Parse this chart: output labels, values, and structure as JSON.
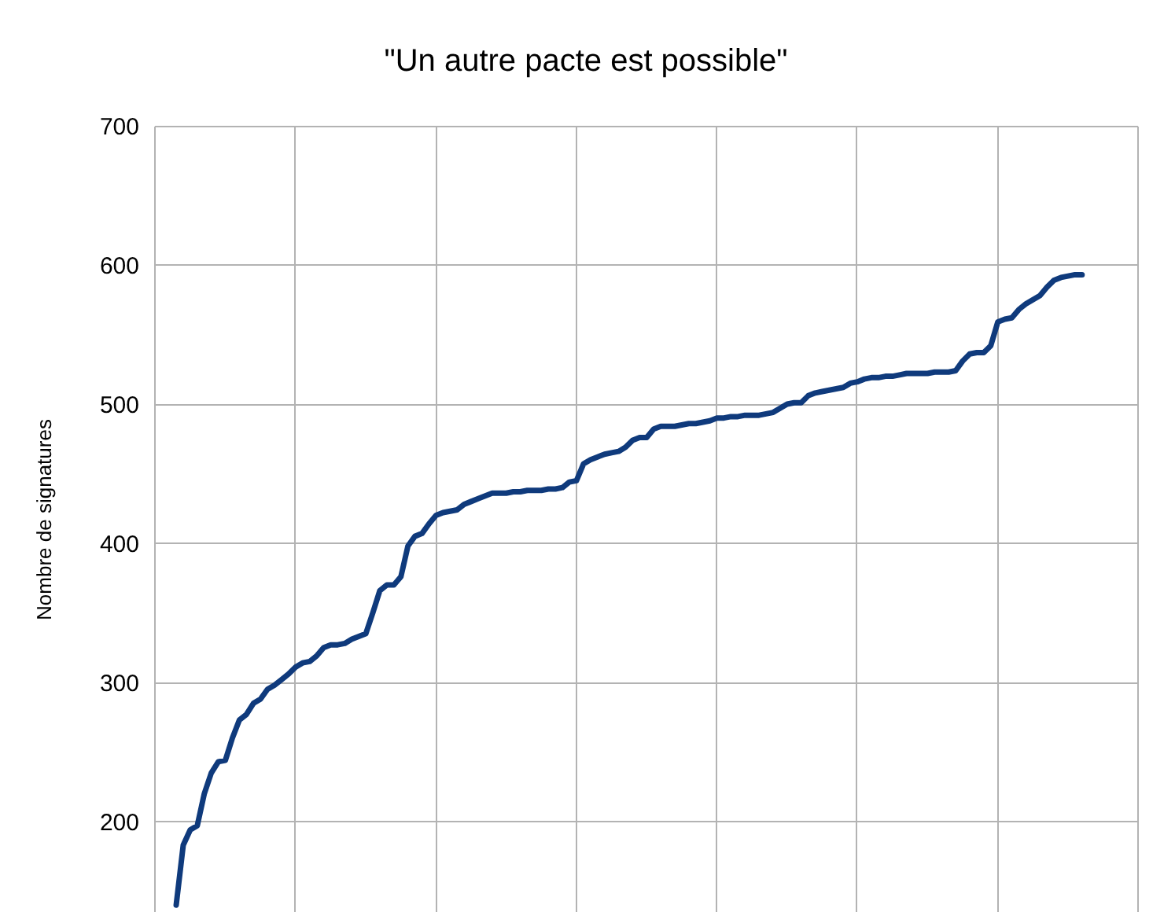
{
  "chart_data": {
    "type": "line",
    "title": "\"Un autre pacte est possible\"",
    "ylabel": "Nombre de signatures",
    "categories": [
      null,
      null,
      null,
      null,
      null,
      null,
      null,
      null,
      null,
      null,
      null,
      null,
      null,
      null,
      null,
      null,
      null,
      null,
      null,
      null,
      null,
      null,
      null,
      null,
      null,
      null,
      null,
      null,
      null,
      null,
      null,
      null,
      null,
      null,
      null,
      null,
      null,
      null,
      null,
      null,
      null,
      null,
      null,
      null,
      null,
      null,
      null,
      null,
      null,
      null,
      null,
      null,
      null,
      null,
      null,
      null,
      null,
      null,
      null,
      null,
      null,
      null,
      null,
      null,
      null,
      null,
      null,
      null,
      null,
      null,
      null,
      null,
      null,
      null,
      null,
      null,
      null,
      null,
      null,
      null,
      null,
      null,
      null,
      null,
      null,
      null,
      null,
      null,
      null,
      null,
      null,
      null,
      null,
      null,
      null,
      null,
      null,
      null,
      null,
      null,
      null,
      null,
      null,
      null,
      null,
      null,
      null,
      null,
      null,
      null,
      null,
      null,
      null,
      null,
      null,
      null,
      null,
      null,
      null,
      null,
      null,
      null,
      null,
      null,
      null,
      null,
      null,
      null,
      null,
      null
    ],
    "ylim": [
      135,
      700
    ],
    "yticks": [
      200,
      300,
      400,
      500,
      600,
      700
    ],
    "grid": true,
    "tick_labels": "y",
    "line_style": "solid",
    "series": [
      {
        "color": "#0f3a7c",
        "values": [
          140,
          183,
          194,
          197,
          220,
          235,
          243,
          244,
          260,
          273,
          277,
          285,
          288,
          295,
          298,
          302,
          306,
          311,
          314,
          315,
          319,
          325,
          327,
          327,
          328,
          331,
          333,
          335,
          350,
          366,
          370,
          370,
          376,
          398,
          405,
          407,
          414,
          420,
          422,
          423,
          424,
          428,
          430,
          432,
          434,
          436,
          436,
          436,
          437,
          437,
          438,
          438,
          438,
          439,
          439,
          440,
          444,
          445,
          457,
          460,
          462,
          464,
          465,
          466,
          469,
          474,
          476,
          476,
          482,
          484,
          484,
          484,
          485,
          486,
          486,
          487,
          488,
          490,
          490,
          491,
          491,
          492,
          492,
          492,
          493,
          494,
          497,
          500,
          501,
          501,
          506,
          508,
          509,
          510,
          511,
          512,
          515,
          516,
          518,
          519,
          519,
          520,
          520,
          521,
          522,
          522,
          522,
          522,
          523,
          523,
          523,
          524,
          531,
          536,
          537,
          537,
          542,
          559,
          561,
          562,
          568,
          572,
          575,
          578,
          584,
          589,
          591,
          592,
          593,
          593
        ]
      }
    ]
  }
}
